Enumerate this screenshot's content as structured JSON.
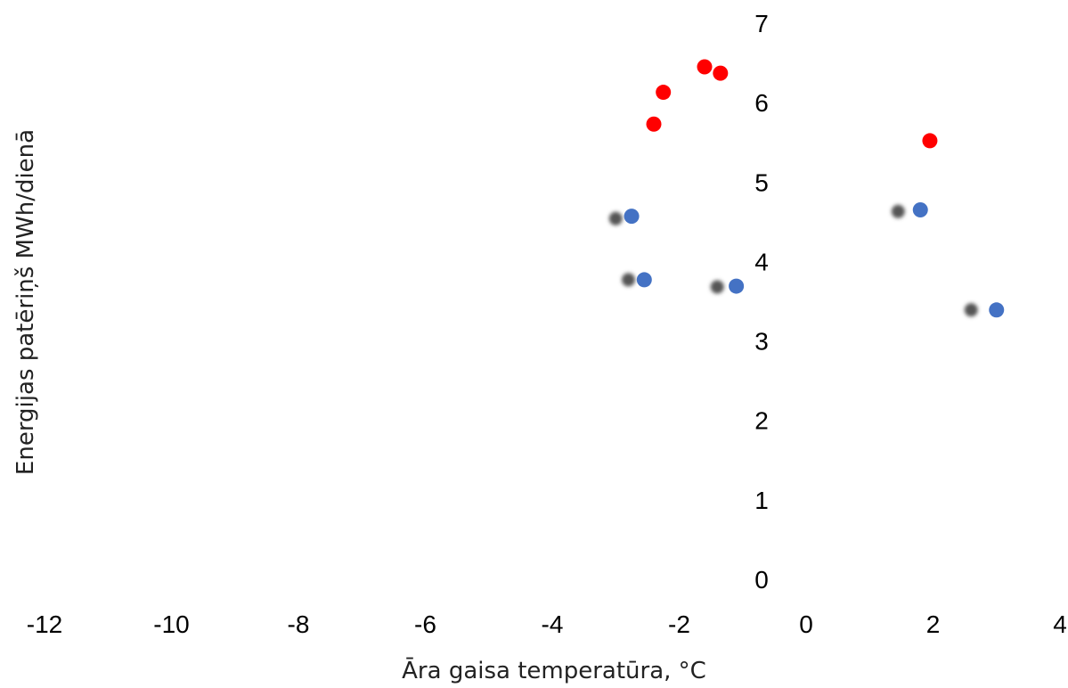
{
  "chart_data": {
    "type": "scatter",
    "title": "",
    "xlabel": "Āra gaisa temperatūra, °C",
    "ylabel": "Energijas patēriņš MWh/dienā",
    "xlim": [
      -12,
      4
    ],
    "ylim": [
      0,
      7
    ],
    "x_ticks": [
      "-12",
      "-10",
      "-8",
      "-6",
      "-4",
      "-2",
      "0",
      "2",
      "4"
    ],
    "y_ticks": [
      "0",
      "1",
      "2",
      "3",
      "4",
      "5",
      "6",
      "7"
    ],
    "grid": false,
    "legend": "none",
    "series": [
      {
        "color": "#ff0000",
        "style": "solid",
        "points": [
          {
            "x": -2.4,
            "y": 5.73
          },
          {
            "x": -2.25,
            "y": 6.13
          },
          {
            "x": -1.6,
            "y": 6.45
          },
          {
            "x": -1.35,
            "y": 6.37
          },
          {
            "x": 1.95,
            "y": 5.52
          }
        ]
      },
      {
        "color": "#4472c4",
        "style": "solid",
        "points": [
          {
            "x": -2.75,
            "y": 4.57
          },
          {
            "x": -2.55,
            "y": 3.77
          },
          {
            "x": -1.1,
            "y": 3.69
          },
          {
            "x": 1.8,
            "y": 4.65
          },
          {
            "x": 3.0,
            "y": 3.39
          }
        ]
      },
      {
        "color": "#555555",
        "style": "blurred",
        "points": [
          {
            "x": -3.0,
            "y": 4.54
          },
          {
            "x": -2.8,
            "y": 3.77
          },
          {
            "x": -1.4,
            "y": 3.68
          },
          {
            "x": 1.45,
            "y": 4.63
          },
          {
            "x": 2.6,
            "y": 3.39
          }
        ]
      }
    ]
  }
}
